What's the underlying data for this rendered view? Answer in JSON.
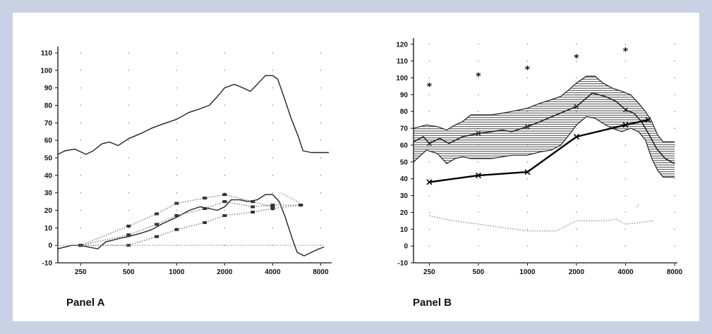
{
  "panels": {
    "a_label": "Panel A",
    "b_label": "Panel B"
  },
  "colors": {
    "background": "#c9d1e4",
    "frame": "#ffffff",
    "line": "#222222",
    "dotted": "#8a8a8a",
    "hatch": "#333333",
    "dotted_blue": "#6fa0b8"
  },
  "chart_data": [
    {
      "panel": "Panel A",
      "type": "line",
      "xscale": "log",
      "x_ticks": [
        250,
        500,
        1000,
        2000,
        4000,
        8000
      ],
      "y_ticks": [
        -10,
        0,
        10,
        20,
        30,
        40,
        50,
        60,
        70,
        80,
        90,
        100,
        110
      ],
      "xlim": [
        180,
        9000
      ],
      "ylim": [
        -10,
        112
      ],
      "grid": "dotted",
      "series": [
        {
          "style": "solid-curve",
          "points": [
            [
              180,
              52
            ],
            [
              200,
              54
            ],
            [
              230,
              55
            ],
            [
              270,
              52
            ],
            [
              300,
              54
            ],
            [
              340,
              58
            ],
            [
              380,
              59
            ],
            [
              430,
              57
            ],
            [
              500,
              61
            ],
            [
              600,
              64
            ],
            [
              700,
              67
            ],
            [
              800,
              69
            ],
            [
              1000,
              72
            ],
            [
              1200,
              76
            ],
            [
              1400,
              78
            ],
            [
              1600,
              80
            ],
            [
              1800,
              85
            ],
            [
              2000,
              90
            ],
            [
              2300,
              92
            ],
            [
              2600,
              90
            ],
            [
              2900,
              88
            ],
            [
              3200,
              92
            ],
            [
              3600,
              97
            ],
            [
              4000,
              97
            ],
            [
              4300,
              95
            ],
            [
              4700,
              85
            ],
            [
              5200,
              73
            ],
            [
              5800,
              62
            ],
            [
              6200,
              54
            ],
            [
              7000,
              53
            ],
            [
              9000,
              53
            ]
          ]
        },
        {
          "style": "solid-curve",
          "points": [
            [
              180,
              -2
            ],
            [
              220,
              0
            ],
            [
              250,
              0
            ],
            [
              280,
              -1
            ],
            [
              320,
              -2
            ],
            [
              360,
              2
            ],
            [
              400,
              3
            ],
            [
              440,
              4
            ],
            [
              500,
              5
            ],
            [
              600,
              7
            ],
            [
              700,
              9
            ],
            [
              800,
              12
            ],
            [
              1000,
              16
            ],
            [
              1200,
              20
            ],
            [
              1400,
              22
            ],
            [
              1600,
              21
            ],
            [
              1800,
              20
            ],
            [
              2000,
              22
            ],
            [
              2200,
              26
            ],
            [
              2500,
              26
            ],
            [
              2800,
              25
            ],
            [
              3200,
              26
            ],
            [
              3600,
              29
            ],
            [
              4000,
              29
            ],
            [
              4400,
              25
            ],
            [
              4800,
              16
            ],
            [
              5300,
              4
            ],
            [
              5700,
              -4
            ],
            [
              6300,
              -6
            ],
            [
              7000,
              -4
            ],
            [
              7800,
              -2
            ],
            [
              8400,
              -1
            ]
          ]
        },
        {
          "style": "dotted-marked",
          "points": [
            [
              250,
              0
            ],
            [
              500,
              11
            ],
            [
              750,
              18
            ],
            [
              1000,
              24
            ],
            [
              1500,
              27
            ],
            [
              2000,
              29
            ],
            [
              3000,
              25
            ],
            [
              4000,
              22
            ]
          ]
        },
        {
          "style": "dotted-marked",
          "points": [
            [
              250,
              0
            ],
            [
              500,
              6
            ],
            [
              750,
              12
            ],
            [
              1000,
              17
            ],
            [
              1500,
              21
            ],
            [
              2000,
              25
            ],
            [
              3000,
              22
            ],
            [
              4000,
              23
            ],
            [
              6000,
              23
            ]
          ]
        },
        {
          "style": "dotted-marked",
          "points": [
            [
              250,
              0
            ],
            [
              500,
              0
            ],
            [
              750,
              5
            ],
            [
              1000,
              9
            ],
            [
              1500,
              13
            ],
            [
              2000,
              17
            ],
            [
              3000,
              19
            ],
            [
              4000,
              21
            ],
            [
              6000,
              23
            ]
          ]
        },
        {
          "style": "dotted-baseline",
          "points": [
            [
              180,
              0
            ],
            [
              8500,
              0
            ]
          ]
        },
        {
          "style": "dotted-blue",
          "points": [
            [
              4500,
              30
            ],
            [
              6000,
              24
            ]
          ]
        }
      ]
    },
    {
      "panel": "Panel B",
      "type": "line",
      "xscale": "log",
      "x_ticks": [
        250,
        500,
        1000,
        2000,
        4000,
        8000
      ],
      "y_ticks": [
        -10,
        0,
        10,
        20,
        30,
        40,
        50,
        60,
        70,
        80,
        90,
        100,
        110,
        120
      ],
      "xlim": [
        200,
        8000
      ],
      "ylim": [
        -10,
        122
      ],
      "grid": "dotted",
      "series": [
        {
          "style": "asterisk-markers",
          "points": [
            [
              250,
              95
            ],
            [
              500,
              101
            ],
            [
              1000,
              105
            ],
            [
              2000,
              112
            ],
            [
              4000,
              116
            ]
          ]
        },
        {
          "style": "hatched-band",
          "upper": [
            [
              200,
              70
            ],
            [
              240,
              72
            ],
            [
              280,
              71
            ],
            [
              320,
              69
            ],
            [
              360,
              72
            ],
            [
              400,
              74
            ],
            [
              450,
              78
            ],
            [
              500,
              78
            ],
            [
              600,
              78
            ],
            [
              700,
              79
            ],
            [
              800,
              80
            ],
            [
              1000,
              82
            ],
            [
              1200,
              85
            ],
            [
              1400,
              87
            ],
            [
              1600,
              89
            ],
            [
              1800,
              93
            ],
            [
              2000,
              97
            ],
            [
              2300,
              101
            ],
            [
              2600,
              101
            ],
            [
              2900,
              97
            ],
            [
              3300,
              94
            ],
            [
              3800,
              92
            ],
            [
              4300,
              90
            ],
            [
              4800,
              85
            ],
            [
              5300,
              80
            ],
            [
              5800,
              74
            ],
            [
              6300,
              66
            ],
            [
              6800,
              62
            ],
            [
              8000,
              62
            ]
          ],
          "lower": [
            [
              200,
              50
            ],
            [
              240,
              57
            ],
            [
              280,
              55
            ],
            [
              320,
              49
            ],
            [
              360,
              52
            ],
            [
              400,
              53
            ],
            [
              450,
              52
            ],
            [
              500,
              52
            ],
            [
              600,
              52
            ],
            [
              700,
              53
            ],
            [
              800,
              54
            ],
            [
              1000,
              54
            ],
            [
              1200,
              56
            ],
            [
              1400,
              57
            ],
            [
              1600,
              60
            ],
            [
              1800,
              66
            ],
            [
              2000,
              72
            ],
            [
              2300,
              77
            ],
            [
              2600,
              76
            ],
            [
              2900,
              73
            ],
            [
              3300,
              70
            ],
            [
              3800,
              68
            ],
            [
              4300,
              70
            ],
            [
              4800,
              68
            ],
            [
              5300,
              63
            ],
            [
              5800,
              52
            ],
            [
              6300,
              45
            ],
            [
              6800,
              41
            ],
            [
              8000,
              41
            ]
          ]
        },
        {
          "style": "solid-curve-marked",
          "points": [
            [
              200,
              62
            ],
            [
              230,
              65
            ],
            [
              250,
              61
            ],
            [
              290,
              64
            ],
            [
              330,
              61
            ],
            [
              400,
              65
            ],
            [
              500,
              67
            ],
            [
              600,
              68
            ],
            [
              700,
              69
            ],
            [
              800,
              68
            ],
            [
              1000,
              71
            ],
            [
              1200,
              74
            ],
            [
              1500,
              78
            ],
            [
              2000,
              83
            ],
            [
              2500,
              91
            ],
            [
              3000,
              89
            ],
            [
              3500,
              86
            ],
            [
              4000,
              81
            ],
            [
              4500,
              79
            ],
            [
              5000,
              74
            ],
            [
              5600,
              66
            ],
            [
              6200,
              58
            ],
            [
              7000,
              52
            ],
            [
              8000,
              49
            ]
          ],
          "markers": [
            [
              250,
              61
            ],
            [
              500,
              67
            ],
            [
              1000,
              71
            ],
            [
              2000,
              83
            ],
            [
              4000,
              81
            ]
          ]
        },
        {
          "style": "thick-solid-x",
          "points": [
            [
              250,
              38
            ],
            [
              500,
              42
            ],
            [
              1000,
              44
            ],
            [
              2000,
              65
            ],
            [
              4000,
              72
            ],
            [
              5500,
              75
            ]
          ]
        },
        {
          "style": "dotted-blue",
          "points": [
            [
              250,
              18
            ],
            [
              350,
              15
            ],
            [
              500,
              13
            ],
            [
              700,
              11
            ],
            [
              1000,
              9
            ],
            [
              1500,
              9
            ],
            [
              2000,
              15
            ],
            [
              2500,
              15
            ],
            [
              3000,
              15
            ],
            [
              3500,
              16
            ],
            [
              4000,
              13
            ],
            [
              5000,
              14
            ],
            [
              6000,
              15
            ]
          ]
        },
        {
          "style": "dotted-blue",
          "points": [
            [
              4700,
              23
            ],
            [
              4800,
              25
            ]
          ]
        }
      ]
    }
  ]
}
